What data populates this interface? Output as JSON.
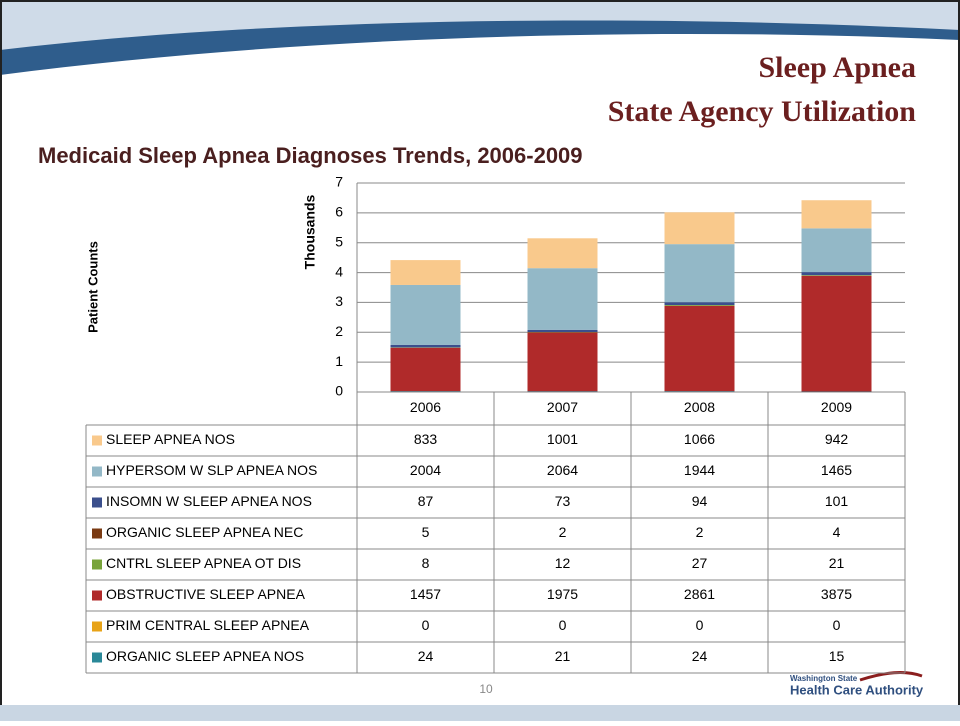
{
  "slide": {
    "title_line1": "Sleep Apnea",
    "title_line2": "State Agency Utilization",
    "page_number": "10",
    "logo_small": "Washington State",
    "logo_large": "Health Care Authority"
  },
  "chart_data": {
    "type": "stacked_bar",
    "title": "Medicaid Sleep Apnea Diagnoses Trends, 2006-2009",
    "y_label": "Patient Counts",
    "y_unit_label": "Thousands",
    "categories": [
      "2006",
      "2007",
      "2008",
      "2009"
    ],
    "ylim": [
      0,
      7000
    ],
    "yticks": [
      0,
      {
        "value": 1000,
        "label": "1"
      },
      {
        "value": 2000,
        "label": "2"
      },
      {
        "value": 3000,
        "label": "3"
      },
      {
        "value": 4000,
        "label": "4"
      },
      {
        "value": 5000,
        "label": "5"
      },
      {
        "value": 6000,
        "label": "6"
      },
      {
        "value": 7000,
        "label": "7"
      }
    ],
    "grid": true,
    "series": [
      {
        "name": "SLEEP APNEA NOS",
        "color": "#f9c98c",
        "values": [
          833,
          1001,
          1066,
          942
        ]
      },
      {
        "name": "HYPERSOM W SLP APNEA NOS",
        "color": "#93b8c7",
        "values": [
          2004,
          2064,
          1944,
          1465
        ]
      },
      {
        "name": "INSOMN W SLEEP APNEA NOS",
        "color": "#3b4f8c",
        "values": [
          87,
          73,
          94,
          101
        ]
      },
      {
        "name": "ORGANIC SLEEP APNEA NEC",
        "color": "#7a3a12",
        "values": [
          5,
          2,
          2,
          4
        ]
      },
      {
        "name": "CNTRL SLEEP APNEA OT DIS",
        "color": "#78a33a",
        "values": [
          8,
          12,
          27,
          21
        ]
      },
      {
        "name": "OBSTRUCTIVE SLEEP APNEA",
        "color": "#b02a2a",
        "values": [
          1457,
          1975,
          2861,
          3875
        ]
      },
      {
        "name": "PRIM CENTRAL SLEEP APNEA",
        "color": "#e8a317",
        "values": [
          0,
          0,
          0,
          0
        ]
      },
      {
        "name": "ORGANIC SLEEP APNEA NOS",
        "color": "#2a8898",
        "values": [
          24,
          21,
          24,
          15
        ]
      }
    ]
  }
}
